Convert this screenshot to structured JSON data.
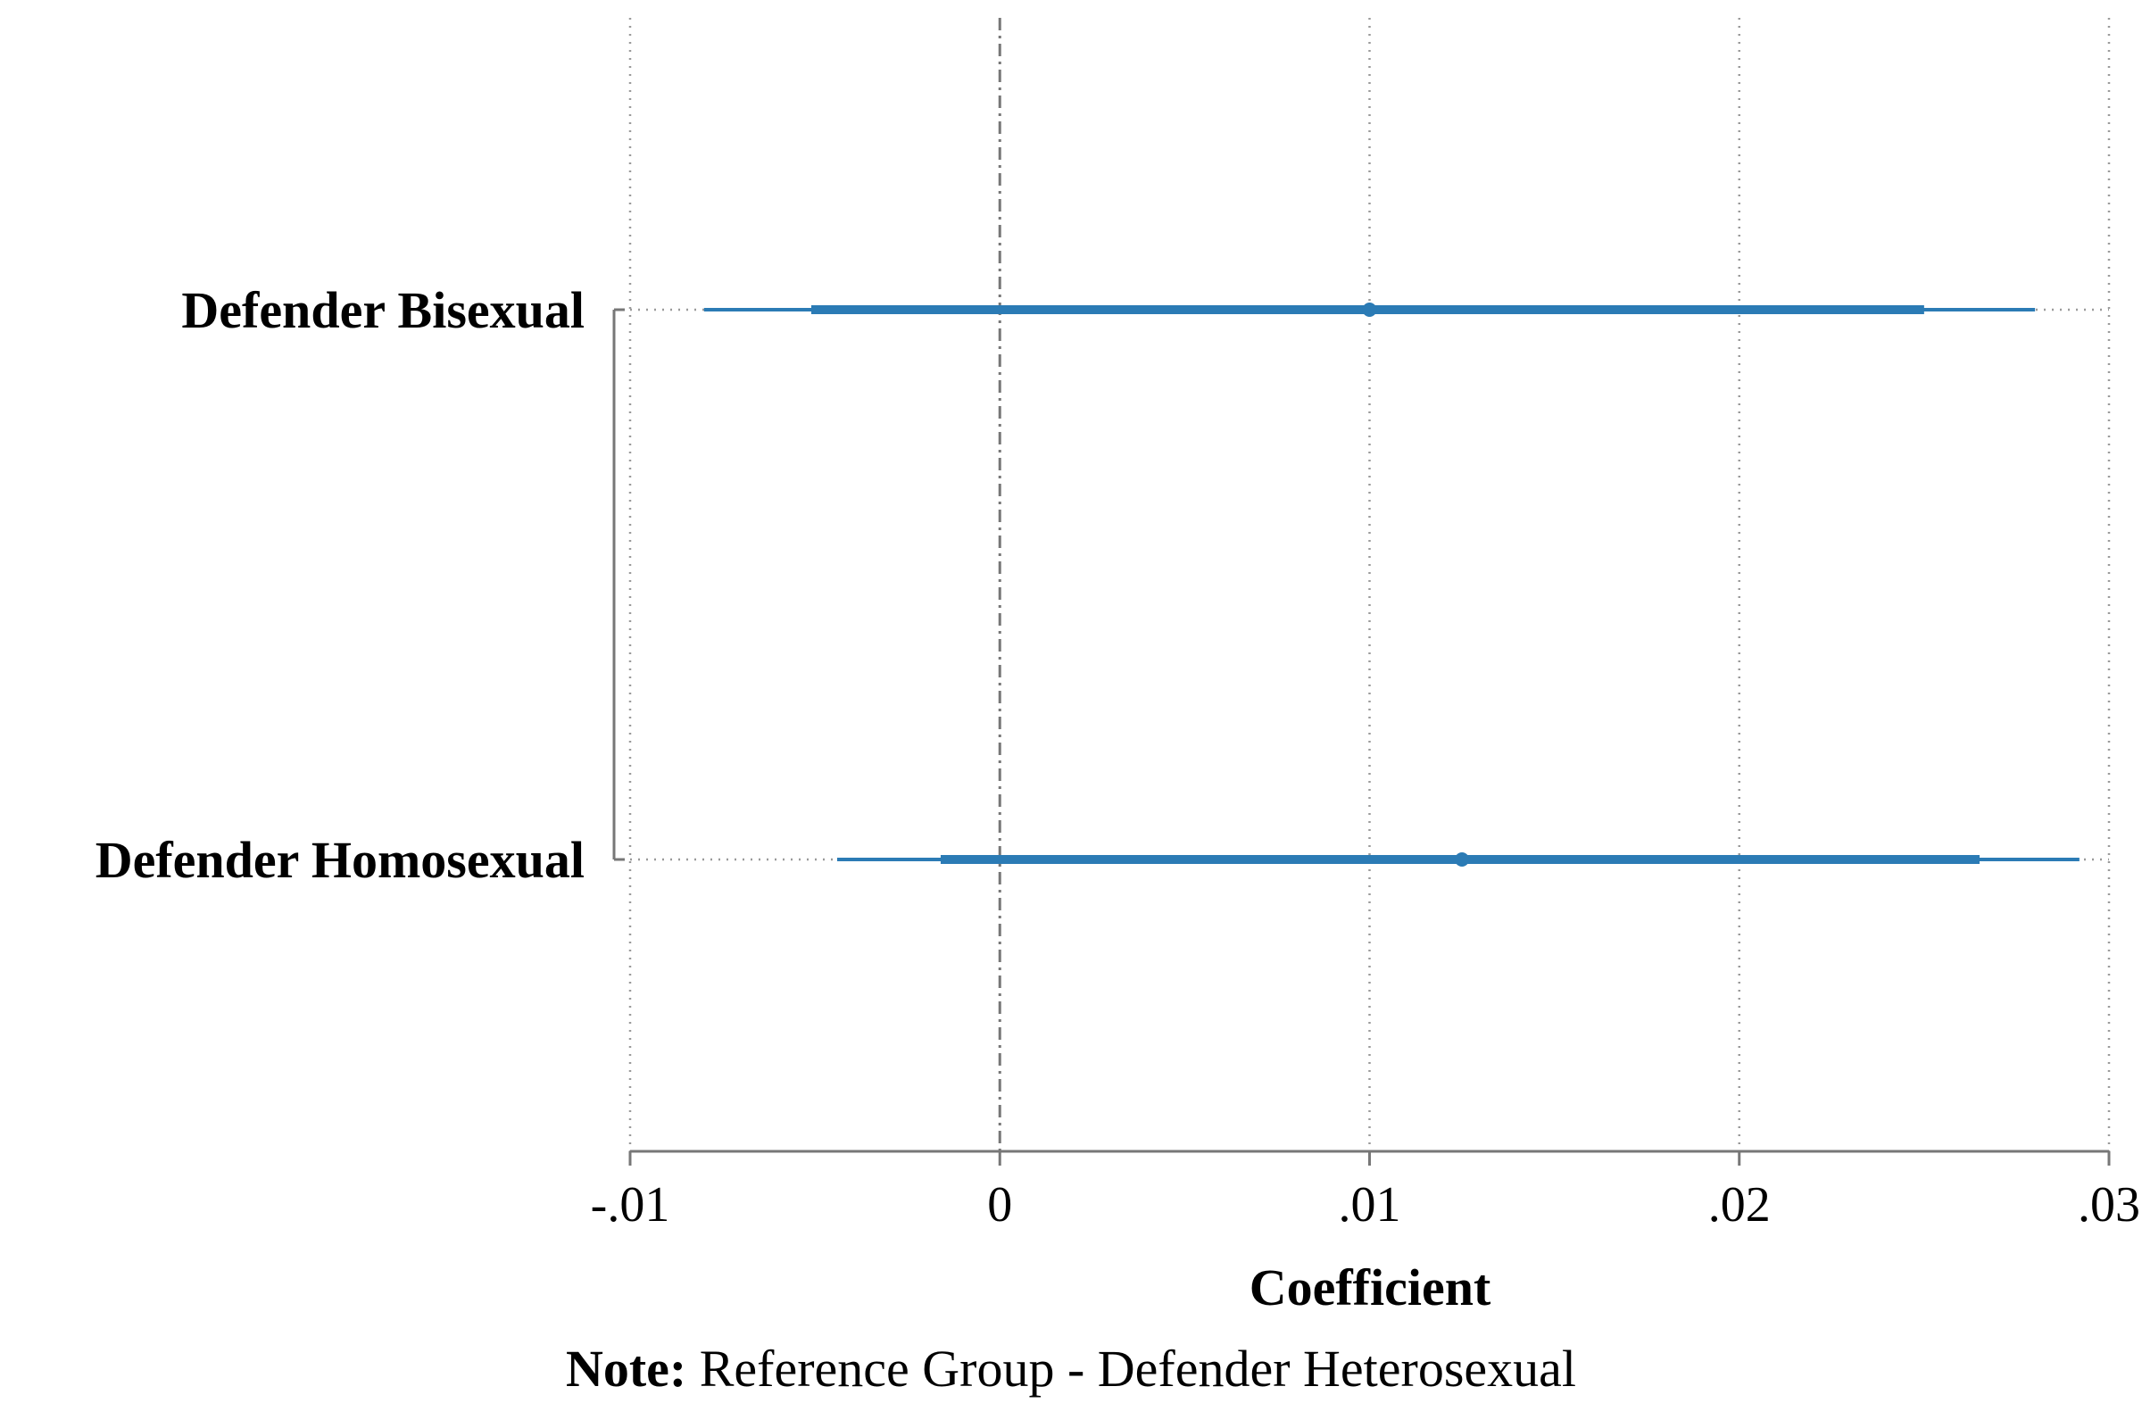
{
  "chart_data": {
    "type": "coefficient_plot",
    "xlabel": "Coefficient",
    "xlim": [
      -0.01,
      0.03
    ],
    "xticks": [
      -0.01,
      0,
      0.01,
      0.02,
      0.03
    ],
    "xtick_labels": [
      "-.01",
      "0",
      ".01",
      ".02",
      ".03"
    ],
    "reference_line": 0,
    "grid": "vertical dotted",
    "color": "#2b7bb5",
    "series": [
      {
        "label": "Defender Bisexual",
        "coef": 0.01,
        "ci90": [
          -0.0051,
          0.025
        ],
        "ci95": [
          -0.008,
          0.028
        ]
      },
      {
        "label": "Defender Homosexual",
        "coef": 0.0125,
        "ci90": [
          -0.0016,
          0.0265
        ],
        "ci95": [
          -0.0044,
          0.0292
        ]
      }
    ]
  },
  "note": {
    "prefix": "Note:",
    "text": " Reference Group - Defender Heterosexual"
  }
}
